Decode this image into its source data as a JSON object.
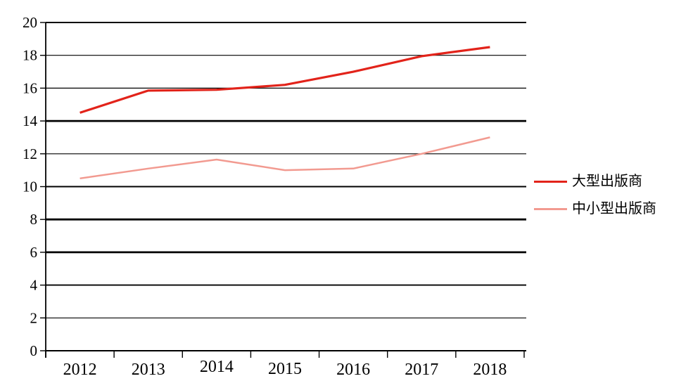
{
  "chart_data": {
    "type": "line",
    "title": "",
    "xlabel": "",
    "ylabel": "",
    "categories": [
      "2012",
      "2013",
      "2014",
      "2015",
      "2016",
      "2017",
      "2018"
    ],
    "series": [
      {
        "name": "大型出版商",
        "color": "#e2231a",
        "stroke_width": 3.2,
        "values": [
          14.5,
          15.85,
          15.9,
          16.2,
          17.0,
          17.95,
          18.5
        ]
      },
      {
        "name": "中小型出版商",
        "color": "#f29a90",
        "stroke_width": 2.5,
        "values": [
          10.5,
          11.1,
          11.65,
          11.0,
          11.1,
          12.0,
          13.0
        ]
      }
    ],
    "ylim": [
      0,
      20
    ],
    "ytick_step": 2,
    "ytick_labels": [
      "0",
      "2",
      "4",
      "6",
      "8",
      "10",
      "12",
      "14",
      "16",
      "18",
      "20"
    ],
    "grid": "horizontal-only",
    "emphasized_gridlines": [
      6,
      8,
      14
    ],
    "medium_gridlines": [
      0,
      4,
      10,
      20
    ],
    "legend_position": "right-middle",
    "axis_color": "#000000",
    "background_color": "#ffffff"
  }
}
